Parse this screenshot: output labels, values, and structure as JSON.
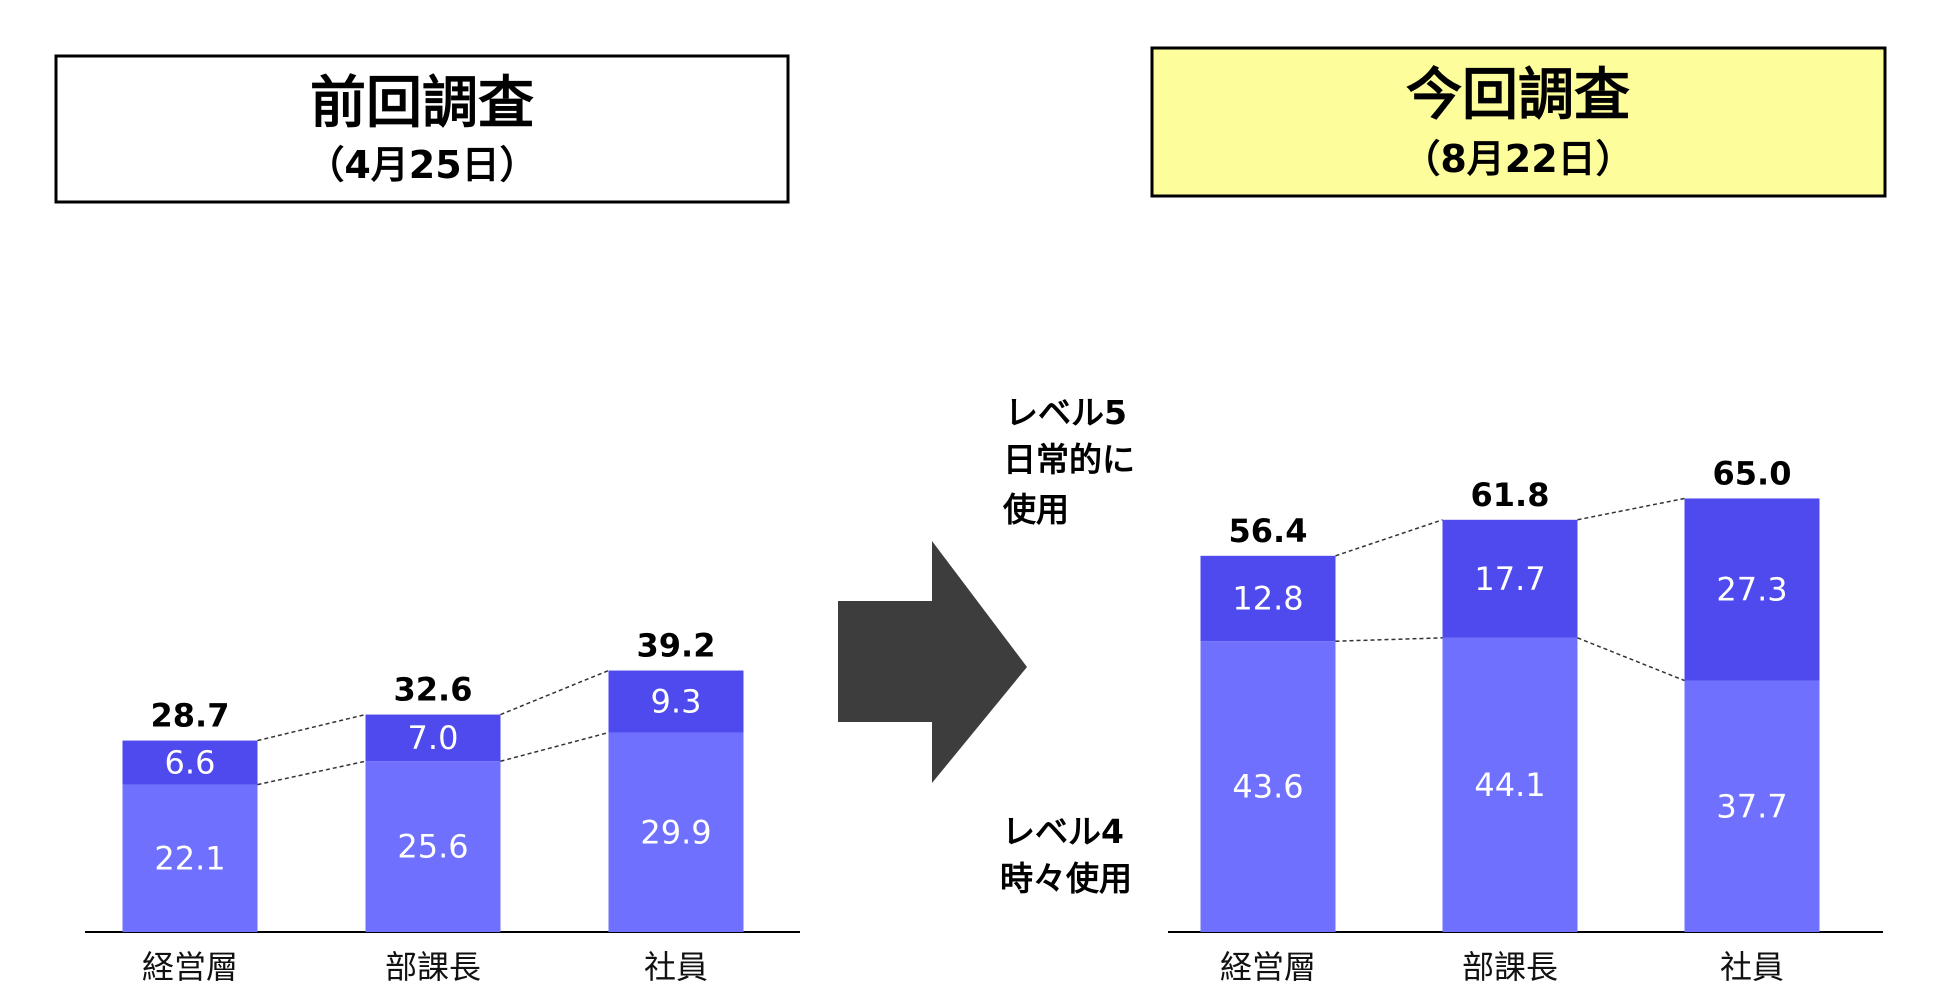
{
  "colors": {
    "level5": "#4e4aed",
    "level4": "#6f70fe",
    "arrow": "#3d3d3d",
    "current_box": "#fdfd9c"
  },
  "chart_data": [
    {
      "type": "bar",
      "stacked": true,
      "panel_title": "前回調査",
      "panel_subtitle": "（4月25日）",
      "categories": [
        "経営層",
        "部課長",
        "社員"
      ],
      "totals": [
        "28.7",
        "32.6",
        "39.2"
      ],
      "series": [
        {
          "name": "レベル4 時々使用",
          "values": [
            22.1,
            25.6,
            29.9
          ],
          "labels": [
            "22.1",
            "25.6",
            "29.9"
          ]
        },
        {
          "name": "レベル5 日常的に使用",
          "values": [
            6.6,
            7.0,
            9.3
          ],
          "labels": [
            "6.6",
            "7.0",
            "9.3"
          ]
        }
      ],
      "ylim": [
        0,
        70
      ],
      "grid": false
    },
    {
      "type": "bar",
      "stacked": true,
      "panel_title": "今回調査",
      "panel_subtitle": "（8月22日）",
      "categories": [
        "経営層",
        "部課長",
        "社員"
      ],
      "totals": [
        "56.4",
        "61.8",
        "65.0"
      ],
      "series": [
        {
          "name": "レベル4 時々使用",
          "values": [
            43.6,
            44.1,
            37.7
          ],
          "labels": [
            "43.6",
            "44.1",
            "37.7"
          ]
        },
        {
          "name": "レベル5 日常的に使用",
          "values": [
            12.8,
            17.7,
            27.3
          ],
          "labels": [
            "12.8",
            "17.7",
            "27.3"
          ]
        }
      ],
      "ylim": [
        0,
        70
      ],
      "grid": false
    }
  ],
  "legend": {
    "level5": [
      "レベル5",
      "日常的に",
      "使用"
    ],
    "level4": [
      "レベル4",
      "時々使用"
    ]
  }
}
